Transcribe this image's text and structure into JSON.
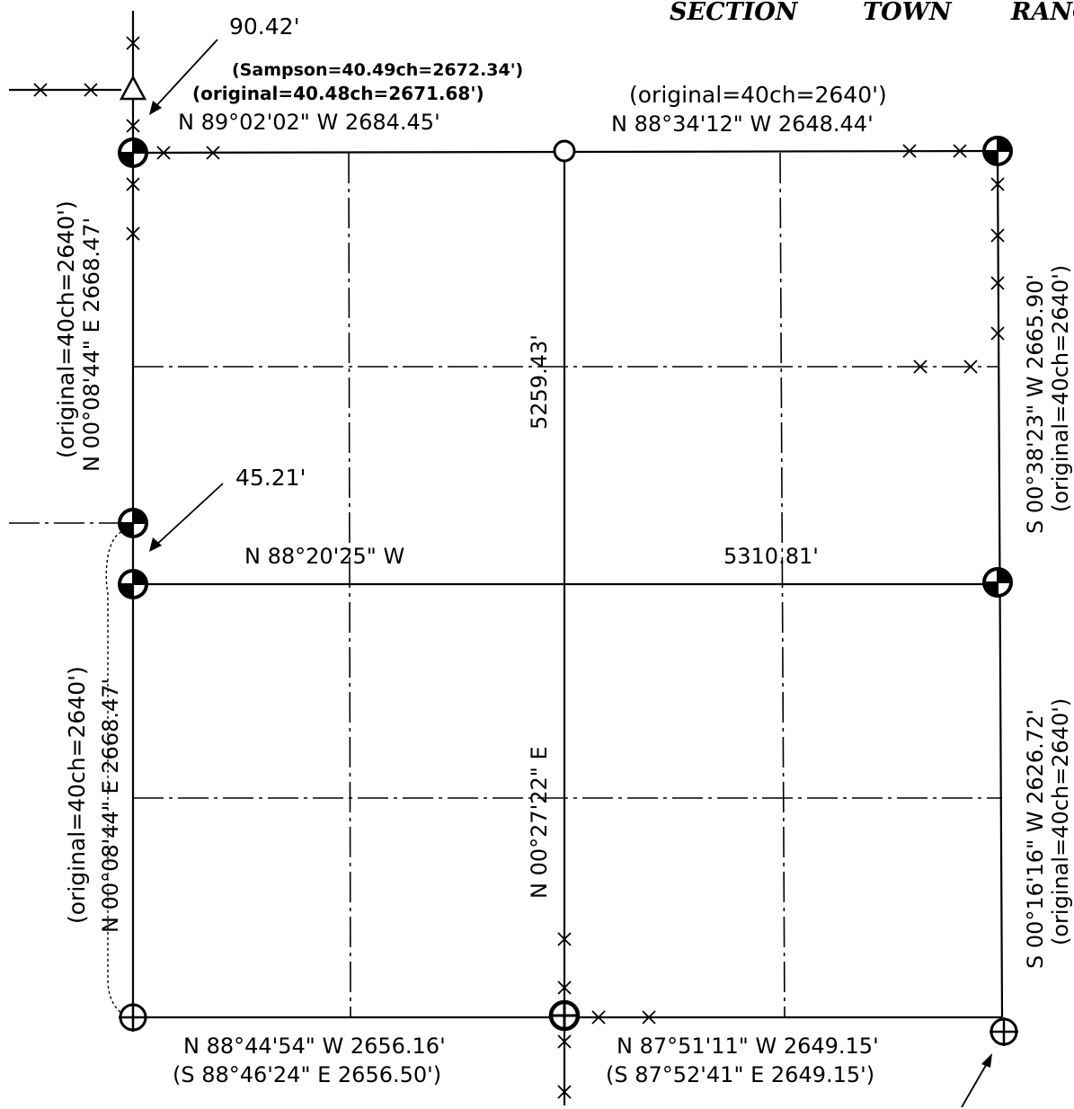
{
  "header": {
    "section": "SECTION",
    "town": "TOWN",
    "range": "RANG"
  },
  "labels": {
    "nw_offset": "90.42'",
    "sampson_note": "(Sampson=40.49ch=2672.34')",
    "north_left_original": "(original=40.48ch=2671.68')",
    "north_left_bearing": "N  89°02'02\"  W  2684.45'",
    "north_right_original": "(original=40ch=2640')",
    "north_right_bearing": "N  88°34'12\"  W  2648.44'",
    "west_upper_bearing": "N  00°08'44\"  E  2668.47'",
    "west_upper_original": "(original=40ch=2640')",
    "center_north_dist": "5259.43'",
    "east_upper_bearing": "S  00°38'23\"  W  2665.90'",
    "east_upper_original": "(original=40ch=2640')",
    "w_offset": "45.21'",
    "midline_bearing": "N  88°20'25\"  W",
    "midline_dist": "5310.81'",
    "west_lower_bearing": "N  00°08'44\"  E  2668.47'",
    "west_lower_original": "(original=40ch=2640')",
    "center_south_bearing": "N  00°27'22\"  E",
    "east_lower_bearing": "S  00°16'16\"  W  2626.72'",
    "east_lower_original": "(original=40ch=2640')",
    "south_left_bearing": "N  88°44'54\"  W  2656.16'",
    "south_left_record": "(S  88°46'24\"  E  2656.50')",
    "south_right_bearing": "N  87°51'11\"  W  2649.15'",
    "south_right_record": "(S  87°52'41\"  E  2649.15')"
  },
  "monuments": [
    {
      "id": "nw-corner",
      "symbol": "found-monument-filled"
    },
    {
      "id": "n-quarter",
      "symbol": "open-circle"
    },
    {
      "id": "ne-corner",
      "symbol": "found-monument-filled"
    },
    {
      "id": "w-quarter-upper",
      "symbol": "found-monument-filled"
    },
    {
      "id": "w-quarter-lower",
      "symbol": "found-monument-filled"
    },
    {
      "id": "e-quarter",
      "symbol": "found-monument-filled"
    },
    {
      "id": "sw-corner",
      "symbol": "circle-cross"
    },
    {
      "id": "s-quarter",
      "symbol": "circle-cross-bold"
    },
    {
      "id": "se-corner",
      "symbol": "circle-cross"
    },
    {
      "id": "nw-offset-point",
      "symbol": "triangle"
    }
  ]
}
